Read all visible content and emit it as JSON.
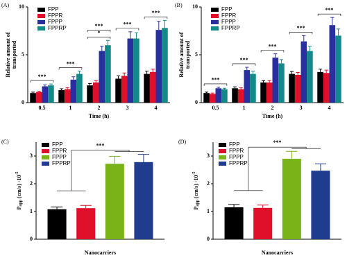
{
  "chart_data": [
    {
      "type": "bar",
      "label": "(A)",
      "xlabel": "Time (h)",
      "ylabel": [
        "Relative amount of",
        "transported"
      ],
      "categories": [
        "0.5",
        "1",
        "2",
        "3",
        "4"
      ],
      "ylim": [
        0,
        10
      ],
      "yticks": [
        0,
        5,
        10
      ],
      "series": [
        {
          "name": "FPP",
          "color": "#000000",
          "values": [
            1.0,
            1.3,
            1.8,
            2.5,
            3.0
          ],
          "errors": [
            0.1,
            0.15,
            0.2,
            0.3,
            0.3
          ]
        },
        {
          "name": "FPPR",
          "color": "#e0102a",
          "values": [
            1.1,
            1.4,
            2.1,
            2.8,
            3.2
          ],
          "errors": [
            0.1,
            0.15,
            0.2,
            0.3,
            0.3
          ]
        },
        {
          "name": "FPPP",
          "color": "#2a2f9e",
          "values": [
            1.7,
            2.4,
            5.4,
            6.7,
            7.6
          ],
          "errors": [
            0.15,
            0.3,
            0.5,
            0.7,
            0.9
          ]
        },
        {
          "name": "FPPRP",
          "color": "#138a8a",
          "values": [
            1.8,
            3.0,
            6.0,
            6.7,
            7.8
          ],
          "errors": [
            0.15,
            0.3,
            0.5,
            0.6,
            0.8
          ]
        }
      ],
      "significance": [
        [
          "***"
        ],
        [
          "***"
        ],
        [
          "*",
          "***"
        ],
        [
          "***"
        ],
        [
          "***"
        ]
      ]
    },
    {
      "type": "bar",
      "label": "(B)",
      "xlabel": "Time (h)",
      "ylabel": [
        "Relative amount of",
        "transported"
      ],
      "categories": [
        "0.5",
        "1",
        "2",
        "3",
        "4"
      ],
      "ylim": [
        0,
        10
      ],
      "yticks": [
        0,
        5,
        10
      ],
      "series": [
        {
          "name": "FPP",
          "color": "#000000",
          "values": [
            1.0,
            1.5,
            2.1,
            3.0,
            3.2
          ],
          "errors": [
            0.1,
            0.15,
            0.2,
            0.25,
            0.3
          ]
        },
        {
          "name": "FPPR",
          "color": "#e0102a",
          "values": [
            0.9,
            1.4,
            2.1,
            2.9,
            3.1
          ],
          "errors": [
            0.1,
            0.15,
            0.2,
            0.25,
            0.3
          ]
        },
        {
          "name": "FPPP",
          "color": "#2a2f9e",
          "values": [
            1.5,
            3.4,
            4.7,
            6.4,
            8.1
          ],
          "errors": [
            0.1,
            0.3,
            0.4,
            0.6,
            0.8
          ]
        },
        {
          "name": "FPPRP",
          "color": "#138a8a",
          "values": [
            1.4,
            3.0,
            4.1,
            5.4,
            7.0
          ],
          "errors": [
            0.1,
            0.3,
            0.4,
            0.5,
            0.7
          ]
        }
      ],
      "significance": [
        [
          "***"
        ],
        [
          "***"
        ],
        [
          "***"
        ],
        [
          "***"
        ],
        [
          "***"
        ]
      ]
    },
    {
      "type": "bar",
      "label": "(C)",
      "xlabel": "Nanocarriers",
      "ylabel": {
        "base": "P",
        "sub": "app",
        "rest": " (cm/s) ·10",
        "sup": "-5"
      },
      "categories": [
        null
      ],
      "ylim": [
        0,
        3.5
      ],
      "yticks": [
        0,
        1,
        2,
        3
      ],
      "series": [
        {
          "name": "FPP",
          "color": "#000000",
          "values": [
            1.08
          ],
          "errors": [
            0.08
          ]
        },
        {
          "name": "FPPR",
          "color": "#e0102a",
          "values": [
            1.12
          ],
          "errors": [
            0.1
          ]
        },
        {
          "name": "FPPP",
          "color": "#7ab317",
          "values": [
            2.72
          ],
          "errors": [
            0.27
          ]
        },
        {
          "name": "FPPRP",
          "color": "#1f3c8f",
          "values": [
            2.78
          ],
          "errors": [
            0.28
          ]
        }
      ],
      "significance": [
        [
          "***"
        ]
      ]
    },
    {
      "type": "bar",
      "label": "(D)",
      "xlabel": "Nanocarriers",
      "ylabel": {
        "base": "P",
        "sub": "app",
        "rest": " (cm/s) ·10",
        "sup": "-5"
      },
      "categories": [
        null
      ],
      "ylim": [
        0,
        3.5
      ],
      "yticks": [
        0,
        1,
        2,
        3
      ],
      "series": [
        {
          "name": "FPP",
          "color": "#000000",
          "values": [
            1.15
          ],
          "errors": [
            0.1
          ]
        },
        {
          "name": "FPPR",
          "color": "#e0102a",
          "values": [
            1.13
          ],
          "errors": [
            0.1
          ]
        },
        {
          "name": "FPPP",
          "color": "#7ab317",
          "values": [
            2.9
          ],
          "errors": [
            0.27
          ]
        },
        {
          "name": "FPPRP",
          "color": "#1f3c8f",
          "values": [
            2.47
          ],
          "errors": [
            0.25
          ]
        }
      ],
      "significance": [
        [
          "***"
        ]
      ]
    }
  ]
}
